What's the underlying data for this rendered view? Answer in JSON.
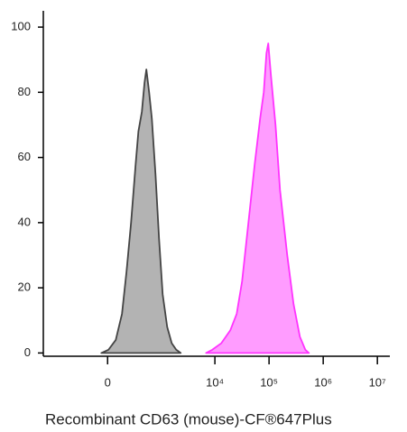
{
  "chart_data": {
    "type": "area",
    "xlabel": "Recombinant CD63 (mouse)-CF®647Plus",
    "xscale": "asinh",
    "xlim": [
      -1600,
      17000000
    ],
    "xticks": [
      0,
      {
        "value": 10000,
        "label": "10⁴"
      },
      {
        "value": 100000,
        "label": "10⁵"
      },
      {
        "value": 1000000,
        "label": "10⁶"
      },
      {
        "value": 10000000,
        "label": "10⁷"
      }
    ],
    "ylim": [
      -1,
      105
    ],
    "yticks": [
      0,
      20,
      40,
      60,
      80,
      100
    ],
    "series": [
      {
        "color": "#444444",
        "fill": "#b3b3b3",
        "x": [
          -57,
          8,
          74,
          136,
          187,
          245,
          313,
          359,
          424,
          481,
          523,
          593,
          669,
          786,
          920,
          1076,
          1308,
          1588,
          1927,
          2335
        ],
        "values": [
          0,
          1,
          4,
          12,
          25,
          40,
          58,
          68,
          74,
          83,
          87,
          80,
          72,
          55,
          35,
          18,
          8,
          3,
          1,
          0
        ]
      },
      {
        "color": "#ff33ff",
        "fill": "#ff9cff",
        "x": [
          6855,
          8966,
          13150,
          19310,
          25260,
          31800,
          41600,
          54400,
          68500,
          79840,
          89600,
          96700,
          108600,
          131600,
          159400,
          216700,
          283500,
          370800,
          467000,
          545000
        ],
        "values": [
          0,
          1,
          3,
          7,
          12,
          22,
          40,
          58,
          72,
          80,
          92,
          95,
          85,
          70,
          50,
          30,
          15,
          5,
          1,
          0
        ]
      }
    ]
  }
}
